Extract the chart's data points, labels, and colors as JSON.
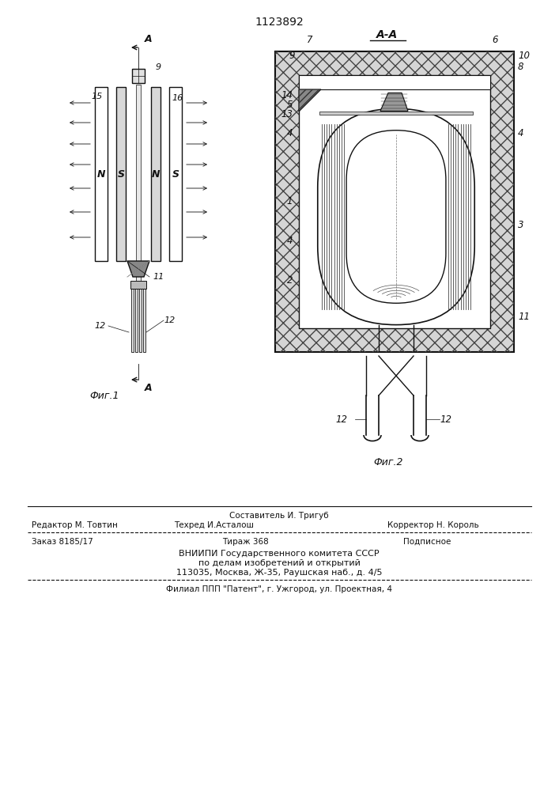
{
  "title": "1123892",
  "fig1_label": "Фиг.1",
  "fig2_label": "Фиг.2",
  "section_label": "А-А",
  "footer_sestavitel": "Составитель И. Тригуб",
  "footer_redaktor": "Редактор М. Товтин",
  "footer_tehred": "Техред И.Асталош",
  "footer_korrektor": "Корректор Н. Король",
  "footer_zakaz": "Заказ 8185/17",
  "footer_tirazh": "Тираж 368",
  "footer_podpisnoe": "Подписное",
  "footer_vniipи": "ВНИИПИ Государственного комитета СССР",
  "footer_podel": "по делам изобретений и открытий",
  "footer_addr": "113035, Москва, Ж-35, Раушская наб., д. 4/5",
  "footer_filial": "Филиал ППП \"Патент\", г. Ужгород, ул. Проектная, 4",
  "lc": "#111111"
}
